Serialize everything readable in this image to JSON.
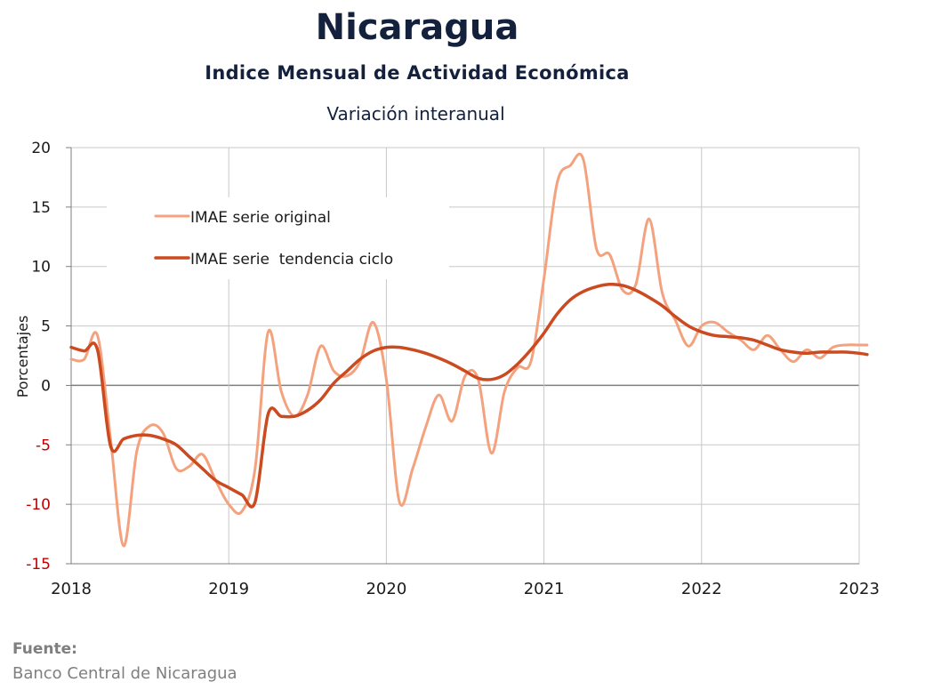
{
  "header": {
    "title": "Nicaragua",
    "subtitle": "Indice Mensual de  Actividad Económica",
    "subsubtitle": "Variación interanual"
  },
  "footer": {
    "source_label": "Fuente:",
    "source_text": "Banco Central de Nicaragua"
  },
  "colors": {
    "original": "#f4a27e",
    "trend": "#cb4a1f",
    "negative_tick": "#c00000",
    "grid": "#c8c8c8",
    "zero_line": "#7f7f7f",
    "text": "#14213d"
  },
  "chart_data": {
    "type": "line",
    "ylabel": "Porcentajes",
    "xlabel": "",
    "ylim": [
      -15,
      20
    ],
    "yticks": [
      20,
      15,
      10,
      5,
      0,
      -5,
      -10,
      -15
    ],
    "xlim": [
      2018.0,
      2023.0
    ],
    "xticks": [
      "2018",
      "2019",
      "2020",
      "2021",
      "2022",
      "2023"
    ],
    "grid": true,
    "legend_position": "top-left",
    "series": [
      {
        "name": "IMAE serie original",
        "color": "#f4a27e",
        "x": [
          2018.0,
          2018.083,
          2018.167,
          2018.25,
          2018.333,
          2018.417,
          2018.5,
          2018.583,
          2018.667,
          2018.75,
          2018.833,
          2018.917,
          2019.0,
          2019.083,
          2019.167,
          2019.25,
          2019.333,
          2019.417,
          2019.5,
          2019.583,
          2019.667,
          2019.75,
          2019.833,
          2019.917,
          2020.0,
          2020.083,
          2020.167,
          2020.25,
          2020.333,
          2020.417,
          2020.5,
          2020.583,
          2020.667,
          2020.75,
          2020.833,
          2020.917,
          2021.0,
          2021.083,
          2021.167,
          2021.25,
          2021.333,
          2021.417,
          2021.5,
          2021.583,
          2021.667,
          2021.75,
          2021.833,
          2021.917,
          2022.0,
          2022.083,
          2022.167,
          2022.25,
          2022.333,
          2022.417,
          2022.5,
          2022.583,
          2022.667,
          2022.75,
          2022.833,
          2022.917,
          2023.0,
          2023.05
        ],
        "values": [
          2.2,
          2.2,
          4.2,
          -4.5,
          -13.5,
          -5.5,
          -3.4,
          -4.0,
          -7.0,
          -6.8,
          -5.8,
          -8.0,
          -10.0,
          -10.6,
          -7.0,
          4.5,
          -0.5,
          -2.6,
          -0.8,
          3.3,
          1.2,
          0.8,
          2.0,
          5.3,
          0.5,
          -9.8,
          -7.0,
          -3.5,
          -0.8,
          -3.0,
          0.8,
          0.5,
          -5.7,
          -0.5,
          1.5,
          2.0,
          9.0,
          17.0,
          18.5,
          19.0,
          11.5,
          11.0,
          8.0,
          8.5,
          14.0,
          7.8,
          5.5,
          3.3,
          5.0,
          5.3,
          4.5,
          3.8,
          3.0,
          4.2,
          3.0,
          2.0,
          3.0,
          2.3,
          3.2,
          3.4,
          3.4,
          3.4
        ]
      },
      {
        "name": "IMAE serie  tendencia ciclo",
        "color": "#cb4a1f",
        "x": [
          2018.0,
          2018.083,
          2018.167,
          2018.25,
          2018.333,
          2018.417,
          2018.5,
          2018.583,
          2018.667,
          2018.75,
          2018.833,
          2018.917,
          2019.0,
          2019.083,
          2019.167,
          2019.25,
          2019.333,
          2019.417,
          2019.5,
          2019.583,
          2019.667,
          2019.75,
          2019.833,
          2019.917,
          2020.0,
          2020.083,
          2020.167,
          2020.25,
          2020.333,
          2020.417,
          2020.5,
          2020.583,
          2020.667,
          2020.75,
          2020.833,
          2020.917,
          2021.0,
          2021.083,
          2021.167,
          2021.25,
          2021.333,
          2021.417,
          2021.5,
          2021.583,
          2021.667,
          2021.75,
          2021.833,
          2021.917,
          2022.0,
          2022.083,
          2022.167,
          2022.25,
          2022.333,
          2022.417,
          2022.5,
          2022.583,
          2022.667,
          2022.75,
          2022.833,
          2022.917,
          2023.0,
          2023.05
        ],
        "values": [
          3.2,
          2.9,
          3.0,
          -5.1,
          -4.5,
          -4.2,
          -4.2,
          -4.5,
          -5.0,
          -6.0,
          -7.0,
          -8.0,
          -8.6,
          -9.2,
          -9.8,
          -2.4,
          -2.6,
          -2.6,
          -2.1,
          -1.2,
          0.2,
          1.2,
          2.2,
          2.9,
          3.2,
          3.2,
          3.0,
          2.7,
          2.3,
          1.8,
          1.2,
          0.6,
          0.5,
          0.9,
          1.8,
          3.0,
          4.4,
          6.0,
          7.2,
          7.9,
          8.3,
          8.5,
          8.4,
          8.0,
          7.4,
          6.7,
          5.8,
          5.0,
          4.5,
          4.2,
          4.1,
          4.0,
          3.8,
          3.4,
          3.0,
          2.8,
          2.7,
          2.8,
          2.8,
          2.8,
          2.7,
          2.6
        ]
      }
    ]
  }
}
